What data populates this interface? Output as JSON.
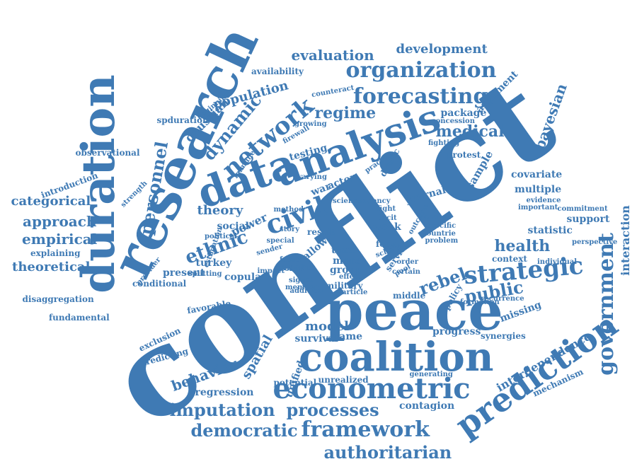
{
  "color": "#3f7ab4",
  "words": [
    {
      "text": "conflict"
    },
    {
      "text": "research"
    },
    {
      "text": "duration"
    },
    {
      "text": "peace"
    },
    {
      "text": "coalition"
    },
    {
      "text": "analysis"
    },
    {
      "text": "data"
    },
    {
      "text": "strategic"
    },
    {
      "text": "prediction"
    },
    {
      "text": "econometric"
    },
    {
      "text": "civil"
    },
    {
      "text": "network"
    },
    {
      "text": "organization"
    },
    {
      "text": "forecasting"
    },
    {
      "text": "government"
    },
    {
      "text": "imputation"
    },
    {
      "text": "processes"
    },
    {
      "text": "framework"
    },
    {
      "text": "democratic"
    },
    {
      "text": "authoritarian"
    },
    {
      "text": "ethnic"
    },
    {
      "text": "dynamic"
    },
    {
      "text": "regime"
    },
    {
      "text": "medical"
    },
    {
      "text": "rebel"
    },
    {
      "text": "public"
    },
    {
      "text": "health"
    },
    {
      "text": "evaluation"
    },
    {
      "text": "development"
    },
    {
      "text": "population"
    },
    {
      "text": "gaussian"
    },
    {
      "text": "personnel"
    },
    {
      "text": "categorical"
    },
    {
      "text": "approach"
    },
    {
      "text": "empirical"
    },
    {
      "text": "theoretical"
    },
    {
      "text": "behavior"
    },
    {
      "text": "spatial"
    },
    {
      "text": "interdependence"
    },
    {
      "text": "interaction"
    },
    {
      "text": "bayesian"
    },
    {
      "text": "argument"
    },
    {
      "text": "package"
    },
    {
      "text": "sample"
    },
    {
      "text": "journal"
    },
    {
      "text": "covariate"
    },
    {
      "text": "multiple"
    },
    {
      "text": "statistic"
    },
    {
      "text": "support"
    },
    {
      "text": "missing"
    },
    {
      "text": "progress"
    },
    {
      "text": "synergies"
    },
    {
      "text": "model"
    },
    {
      "text": "game"
    },
    {
      "text": "survival"
    },
    {
      "text": "unified"
    },
    {
      "text": "regression"
    },
    {
      "text": "potential"
    },
    {
      "text": "unrealized"
    },
    {
      "text": "contagion"
    },
    {
      "text": "mechanism"
    },
    {
      "text": "theory"
    },
    {
      "text": "power"
    },
    {
      "text": "social"
    },
    {
      "text": "turkey"
    },
    {
      "text": "copula"
    },
    {
      "text": "present"
    },
    {
      "text": "war"
    },
    {
      "text": "actor"
    },
    {
      "text": "testing"
    },
    {
      "text": "availability"
    },
    {
      "text": "spduration"
    },
    {
      "text": "observational"
    },
    {
      "text": "introduction"
    },
    {
      "text": "explaining"
    },
    {
      "text": "disaggregation"
    },
    {
      "text": "fundamental"
    },
    {
      "text": "exclusion"
    },
    {
      "text": "predicting"
    },
    {
      "text": "conditional"
    },
    {
      "text": "splitting"
    },
    {
      "text": "provider"
    },
    {
      "text": "favorable"
    },
    {
      "text": "policy"
    },
    {
      "text": "context"
    },
    {
      "text": "perspective"
    },
    {
      "text": "commitment"
    },
    {
      "text": "evidence"
    },
    {
      "text": "important"
    },
    {
      "text": "dyadic"
    },
    {
      "text": "protest"
    },
    {
      "text": "fighting"
    },
    {
      "text": "concession"
    },
    {
      "text": "practice"
    },
    {
      "text": "immune"
    },
    {
      "text": "varying"
    },
    {
      "text": "firewall"
    },
    {
      "text": "growing"
    },
    {
      "text": "counteract"
    },
    {
      "text": "beginning"
    },
    {
      "text": "strength"
    },
    {
      "text": "estimation"
    },
    {
      "text": "political"
    },
    {
      "text": "method"
    },
    {
      "text": "result"
    },
    {
      "text": "allow"
    },
    {
      "text": "time"
    },
    {
      "text": "more"
    },
    {
      "text": "group"
    },
    {
      "text": "insight"
    },
    {
      "text": "signal"
    },
    {
      "text": "member"
    },
    {
      "text": "military"
    },
    {
      "text": "article"
    },
    {
      "text": "service"
    },
    {
      "text": "specific"
    },
    {
      "text": "form"
    },
    {
      "text": "weak"
    },
    {
      "text": "tacit"
    },
    {
      "text": "fight"
    },
    {
      "text": "effect"
    },
    {
      "text": "middle"
    },
    {
      "text": "generating"
    },
    {
      "text": "formation"
    },
    {
      "text": "recurrence"
    },
    {
      "text": "individual"
    },
    {
      "text": "problem"
    },
    {
      "text": "countrie"
    },
    {
      "text": "account"
    },
    {
      "text": "outcome"
    },
    {
      "text": "scholar"
    },
    {
      "text": "science"
    },
    {
      "text": "agency"
    },
    {
      "text": "story"
    },
    {
      "text": "focus"
    },
    {
      "text": "collar"
    },
    {
      "text": "addition"
    },
    {
      "text": "sender"
    },
    {
      "text": "special"
    },
    {
      "text": "impact"
    },
    {
      "text": "order"
    },
    {
      "text": "certain"
    },
    {
      "text": "pool"
    },
    {
      "text": "role"
    },
    {
      "text": "white"
    },
    {
      "text": "strong"
    },
    {
      "text": "current"
    }
  ]
}
